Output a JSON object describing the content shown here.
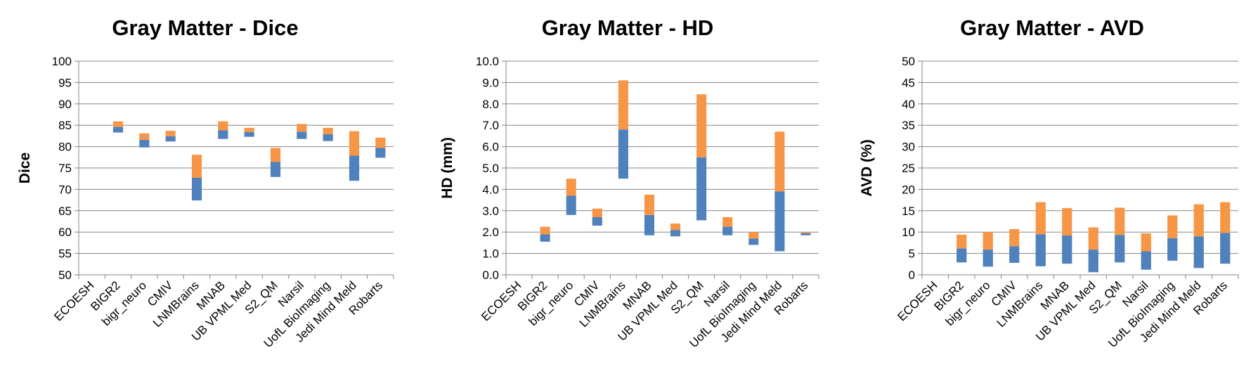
{
  "colors": {
    "lower": "#4F81BD",
    "upper": "#F79646",
    "grid": "#868686",
    "axis": "#868686"
  },
  "chart_data": [
    {
      "type": "bar",
      "subtype": "floating-stacked",
      "title": "Gray Matter - Dice",
      "ylabel": "Dice",
      "xlabel": "",
      "ylim": [
        50,
        100
      ],
      "ytick_step": 5,
      "ytick_labels": [
        "50",
        "55",
        "60",
        "65",
        "70",
        "75",
        "80",
        "85",
        "90",
        "95",
        "100"
      ],
      "grid": true,
      "categories": [
        "ECOESH",
        "BIGR2",
        "bigr_neuro",
        "CMIV",
        "LNMBrains",
        "MNAB",
        "UB VPML Med",
        "S2_QM",
        "Narsil",
        "UofL BioImaging",
        "Jedi Mind Meld",
        "Robarts"
      ],
      "series": [
        {
          "values": [
            null,
            83.3,
            79.8,
            81.2,
            67.4,
            81.8,
            82.3,
            72.9,
            81.8,
            81.3,
            72.0,
            77.4
          ]
        },
        {
          "values": [
            null,
            84.6,
            81.6,
            82.4,
            72.7,
            83.8,
            83.4,
            76.4,
            83.5,
            82.9,
            77.9,
            79.7
          ]
        },
        {
          "values": [
            null,
            85.9,
            83.1,
            83.7,
            78.1,
            85.9,
            84.4,
            79.7,
            85.3,
            84.4,
            83.6,
            82.1
          ]
        }
      ]
    },
    {
      "type": "bar",
      "subtype": "floating-stacked",
      "title": "Gray Matter - HD",
      "ylabel": "HD (mm)",
      "xlabel": "",
      "ylim": [
        0,
        10
      ],
      "ytick_step": 1,
      "ytick_labels": [
        "0.0",
        "1.0",
        "2.0",
        "3.0",
        "4.0",
        "5.0",
        "6.0",
        "7.0",
        "8.0",
        "9.0",
        "10.0"
      ],
      "grid": true,
      "categories": [
        "ECOESH",
        "BIGR2",
        "bigr_neuro",
        "CMIV",
        "LNMBrains",
        "MNAB",
        "UB VPML Med",
        "S2_QM",
        "Narsil",
        "UofL BioImaging",
        "Jedi Mind Meld",
        "Robarts"
      ],
      "series": [
        {
          "values": [
            null,
            1.55,
            2.8,
            2.3,
            4.5,
            1.85,
            1.8,
            2.55,
            1.85,
            1.4,
            1.1,
            1.85
          ]
        },
        {
          "values": [
            null,
            1.9,
            3.7,
            2.7,
            6.8,
            2.8,
            2.1,
            5.5,
            2.25,
            1.7,
            3.9,
            1.95
          ]
        },
        {
          "values": [
            null,
            2.25,
            4.5,
            3.1,
            9.1,
            3.75,
            2.4,
            8.45,
            2.7,
            2.0,
            6.7,
            2.0
          ]
        }
      ]
    },
    {
      "type": "bar",
      "subtype": "floating-stacked",
      "title": "Gray Matter - AVD",
      "ylabel": "AVD (%)",
      "xlabel": "",
      "ylim": [
        0,
        50
      ],
      "ytick_step": 5,
      "ytick_labels": [
        "0",
        "5",
        "10",
        "15",
        "20",
        "25",
        "30",
        "35",
        "40",
        "45",
        "50"
      ],
      "grid": true,
      "categories": [
        "ECOESH",
        "BIGR2",
        "bigr_neuro",
        "CMIV",
        "LNMBrains",
        "MNAB",
        "UB VPML Med",
        "S2_QM",
        "Narsil",
        "UofL BioImaging",
        "Jedi Mind Meld",
        "Robarts"
      ],
      "series": [
        {
          "values": [
            null,
            2.9,
            1.9,
            2.8,
            2.0,
            2.6,
            0.6,
            2.9,
            1.2,
            3.3,
            1.6,
            2.6
          ]
        },
        {
          "values": [
            null,
            6.2,
            5.9,
            6.7,
            9.5,
            9.2,
            5.9,
            9.3,
            5.5,
            8.6,
            9.0,
            9.8
          ]
        },
        {
          "values": [
            null,
            9.4,
            10.0,
            10.7,
            17.0,
            15.6,
            11.1,
            15.7,
            9.7,
            13.9,
            16.5,
            17.0
          ]
        }
      ]
    }
  ]
}
